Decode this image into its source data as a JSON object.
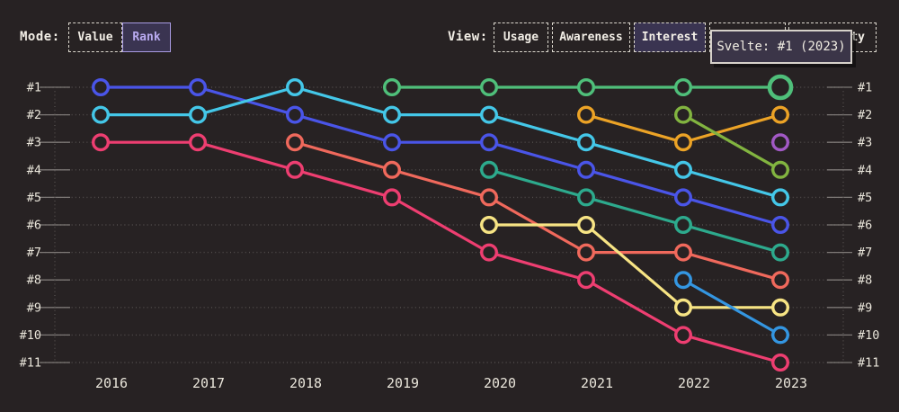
{
  "topbar": {
    "mode": {
      "label": "Mode:",
      "buttons": [
        {
          "label": "Value",
          "active": false
        },
        {
          "label": "Rank",
          "active": true
        }
      ]
    },
    "view": {
      "label": "View:",
      "buttons": [
        {
          "label": "Usage",
          "active": false
        },
        {
          "label": "Awareness",
          "active": false
        },
        {
          "label": "Interest",
          "active": true
        },
        {
          "label": "",
          "active": false
        },
        {
          "label": "ty",
          "active": false
        }
      ]
    },
    "tooltip": {
      "text": "Svelte: #1 (2023)"
    }
  },
  "colors": {
    "background": "#272223",
    "grid": "#524d4c",
    "tick": "#7d7876",
    "axis_text": "#e9e5da",
    "tooltip_bg": "#3b3548",
    "tooltip_border": "#d6d1ca",
    "active_button_bg": "#3a3451",
    "mode_active_text": "#b9aaf0"
  },
  "chart_data": {
    "type": "line",
    "subtype": "bump-rank-chart",
    "x": [
      2016,
      2017,
      2018,
      2019,
      2020,
      2021,
      2022,
      2023
    ],
    "rank_labels_left": [
      "#1",
      "#2",
      "#3",
      "#4",
      "#5",
      "#6",
      "#7",
      "#8",
      "#9",
      "#10",
      "#11"
    ],
    "rank_labels_right": [
      "#1",
      "#2",
      "#3",
      "#4",
      "#5",
      "#6",
      "#7",
      "#8",
      "#9",
      "#10",
      "#11"
    ],
    "ylim": [
      1,
      11
    ],
    "grid": true,
    "legend": "none",
    "series": [
      {
        "id": "blue",
        "color": "#4a55e8",
        "ranks": [
          1,
          1,
          2,
          3,
          3,
          4,
          5,
          6
        ]
      },
      {
        "id": "cyan",
        "color": "#44c7e8",
        "ranks": [
          2,
          2,
          1,
          2,
          2,
          3,
          4,
          5
        ]
      },
      {
        "id": "pink",
        "color": "#ee3e71",
        "ranks": [
          3,
          3,
          4,
          5,
          7,
          8,
          10,
          11
        ]
      },
      {
        "id": "salmon",
        "color": "#f0695c",
        "ranks": [
          null,
          null,
          3,
          4,
          5,
          7,
          7,
          8
        ]
      },
      {
        "id": "svelte",
        "color": "#4fbf7a",
        "ranks": [
          null,
          null,
          null,
          1,
          1,
          1,
          1,
          1
        ],
        "highlight": {
          "year": 2023,
          "rank": 1
        }
      },
      {
        "id": "teal",
        "color": "#2daa8d",
        "ranks": [
          null,
          null,
          null,
          null,
          4,
          5,
          6,
          7
        ]
      },
      {
        "id": "yellow",
        "color": "#f7e484",
        "ranks": [
          null,
          null,
          null,
          null,
          6,
          6,
          9,
          9
        ]
      },
      {
        "id": "orange",
        "color": "#eca326",
        "ranks": [
          null,
          null,
          null,
          null,
          null,
          2,
          3,
          2
        ]
      },
      {
        "id": "lime",
        "color": "#82b440",
        "ranks": [
          null,
          null,
          null,
          null,
          null,
          null,
          2,
          4
        ]
      },
      {
        "id": "sky",
        "color": "#3496e1",
        "ranks": [
          null,
          null,
          null,
          null,
          null,
          null,
          8,
          10
        ]
      },
      {
        "id": "purple",
        "color": "#a259c5",
        "ranks": [
          null,
          null,
          null,
          null,
          null,
          null,
          null,
          3
        ]
      }
    ]
  }
}
